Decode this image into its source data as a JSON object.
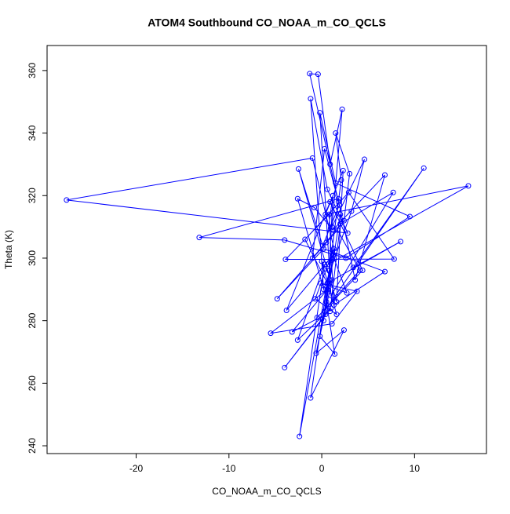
{
  "chart_data": {
    "type": "line",
    "title": "ATOM4 Southbound CO_NOAA_m_CO_QCLS",
    "x_label": "CO_NOAA_m_CO_QCLS",
    "y_label": "Theta (K)",
    "color": "#0000ff",
    "markers": true,
    "xlim": [
      -29.6,
      17.75
    ],
    "ylim": [
      237.5,
      368
    ],
    "xticks": [
      -20,
      -10,
      0,
      10
    ],
    "yticks": [
      240,
      260,
      280,
      300,
      320,
      340,
      360
    ],
    "x": [
      0.5,
      1.2,
      0.8,
      2.1,
      1.5,
      3.0,
      2.4,
      -1.0,
      0.3,
      1.8,
      -1.3,
      -0.4,
      0.9,
      2.2,
      1.1,
      4.6,
      3.2,
      0.2,
      -1.2,
      0.6,
      2.8,
      -27.5,
      -1.0,
      1.4,
      0.7,
      15.8,
      0.4,
      2.3,
      1.6,
      -2.5,
      0.1,
      1.9,
      3.6,
      6.8,
      1.2,
      -0.8,
      -2.6,
      0.9,
      2.0,
      7.7,
      1.0,
      -0.2,
      1.5,
      9.5,
      2.6,
      -4.0,
      -13.2,
      1.8,
      0.3,
      11.0,
      3.4,
      8.5,
      0.6,
      -1.8,
      2.9,
      7.8,
      -3.9,
      0.8,
      1.3,
      6.8,
      0.2,
      -4.8,
      1.7,
      4.1,
      -0.5,
      4.4,
      0.9,
      -3.8,
      1.2,
      2.7,
      -0.1,
      3.8,
      1.1,
      -5.5,
      0.6,
      -3.2,
      0.4,
      -4.0,
      1.0,
      -2.6,
      0.3,
      -2.4,
      0.8,
      -1.2,
      2.4,
      -0.6,
      0.5,
      1.4,
      -0.2,
      1.1,
      0.0,
      1.6,
      -0.7,
      1.3,
      0.2,
      2.0
    ],
    "values": [
      305,
      320,
      296,
      325,
      340,
      327,
      312,
      300,
      335,
      318,
      359,
      358.8,
      330,
      347.6,
      310,
      331.6,
      315,
      290,
      351,
      322,
      308,
      318.6,
      332,
      302,
      298,
      323.1,
      314,
      328,
      286,
      328.5,
      304,
      317,
      293,
      326.6,
      309,
      316.2,
      319,
      283,
      311,
      321,
      288,
      346.5,
      324,
      313.3,
      300,
      305.8,
      306.6,
      319,
      283,
      328.8,
      297,
      305.3,
      292,
      306,
      321,
      299.7,
      299.6,
      314,
      285,
      295.7,
      303,
      287,
      309,
      296.1,
      281,
      296.1,
      318,
      283.3,
      301,
      288.9,
      292,
      289.4,
      279,
      276,
      290,
      276.4,
      282,
      265,
      284,
      273.8,
      298,
      243,
      296,
      255.3,
      277,
      269.6,
      286,
      269.3,
      275,
      293,
      299,
      282,
      287,
      303,
      280,
      314
    ]
  }
}
